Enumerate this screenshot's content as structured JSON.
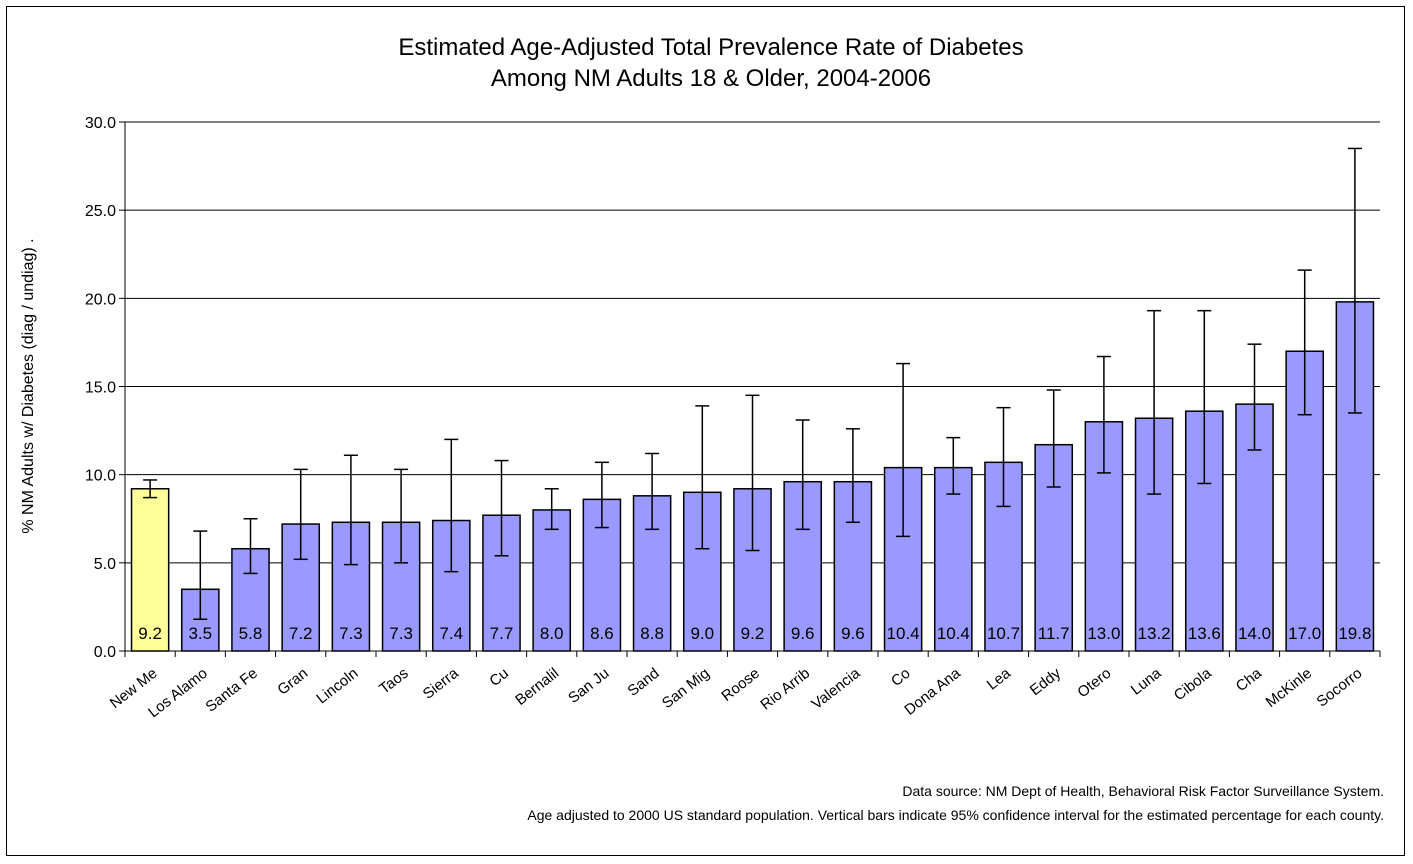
{
  "chart_data": {
    "type": "bar",
    "title_lines": [
      "Estimated Age-Adjusted Total Prevalence Rate of Diabetes",
      "Among NM Adults 18 & Older, 2004-2006"
    ],
    "ylabel": "% NM Adults w/ Diabetes (diag / undiag)  .",
    "xlabel": "",
    "ylim": [
      0,
      30
    ],
    "yticks": [
      "0.0",
      "5.0",
      "10.0",
      "15.0",
      "20.0",
      "25.0",
      "30.0"
    ],
    "grid": true,
    "categories": [
      "New Me",
      "Los Alamo",
      "Santa Fe",
      "Gran",
      "Lincoln",
      "Taos",
      "Sierra",
      "Cu",
      "Bernalil",
      "San Ju",
      "Sand",
      "San Mig",
      "Roose",
      "Rio Arrib",
      "Valencia",
      "Co",
      "Dona Ana",
      "Lea",
      "Eddy",
      "Otero",
      "Luna",
      "Cibola",
      "Cha",
      "McKinle",
      "Socorro"
    ],
    "values": [
      9.2,
      3.5,
      5.8,
      7.2,
      7.3,
      7.3,
      7.4,
      7.7,
      8.0,
      8.6,
      8.8,
      9.0,
      9.2,
      9.6,
      9.6,
      10.4,
      10.4,
      10.7,
      11.7,
      13.0,
      13.2,
      13.6,
      14.0,
      17.0,
      19.8
    ],
    "value_labels": [
      "9.2",
      "3.5",
      "5.8",
      "7.2",
      "7.3",
      "7.3",
      "7.4",
      "7.7",
      "8.0",
      "8.6",
      "8.8",
      "9.0",
      "9.2",
      "9.6",
      "9.6",
      "10.4",
      "10.4",
      "10.7",
      "11.7",
      "13.0",
      "13.2",
      "13.6",
      "14.0",
      "17.0",
      "19.8"
    ],
    "ci_low": [
      8.7,
      1.8,
      4.4,
      5.2,
      4.9,
      5.0,
      4.5,
      5.4,
      6.9,
      7.0,
      6.9,
      5.8,
      5.7,
      6.9,
      7.3,
      6.5,
      8.9,
      8.2,
      9.3,
      10.1,
      8.9,
      9.5,
      11.4,
      13.4,
      13.5
    ],
    "ci_high": [
      9.7,
      6.8,
      7.5,
      10.3,
      11.1,
      10.3,
      12.0,
      10.8,
      9.2,
      10.7,
      11.2,
      13.9,
      14.5,
      13.1,
      12.6,
      16.3,
      12.1,
      13.8,
      14.8,
      16.7,
      19.3,
      19.3,
      17.4,
      21.6,
      28.5
    ],
    "highlight_index": 0,
    "colors": {
      "bar": "#9999ff",
      "highlight_bar": "#ffff99",
      "bar_border": "#000000",
      "gridline": "#000000"
    }
  },
  "notes": [
    "Data source: NM Dept of Health, Behavioral Risk Factor Surveillance System.",
    "Age adjusted to 2000 US standard population. Vertical bars indicate 95% confidence interval for the estimated percentage for each county."
  ]
}
